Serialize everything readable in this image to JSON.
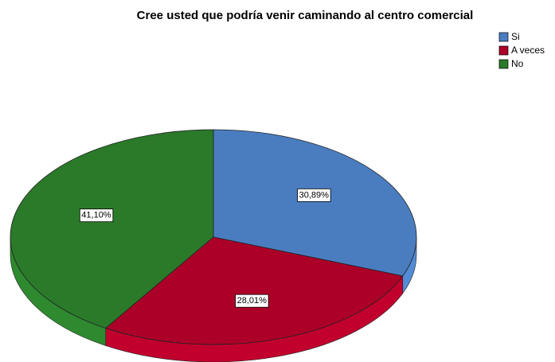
{
  "chart_data": {
    "type": "pie",
    "title": "Cree usted que podría venir caminando al centro comercial",
    "categories": [
      "Si",
      "A veces",
      "No"
    ],
    "values": [
      30.89,
      28.01,
      41.1
    ],
    "value_labels": [
      "30,89%",
      "28,01%",
      "41,10%"
    ],
    "colors": [
      "#4a7dbf",
      "#ad0028",
      "#2a7a2a"
    ],
    "legend": "top-right"
  }
}
